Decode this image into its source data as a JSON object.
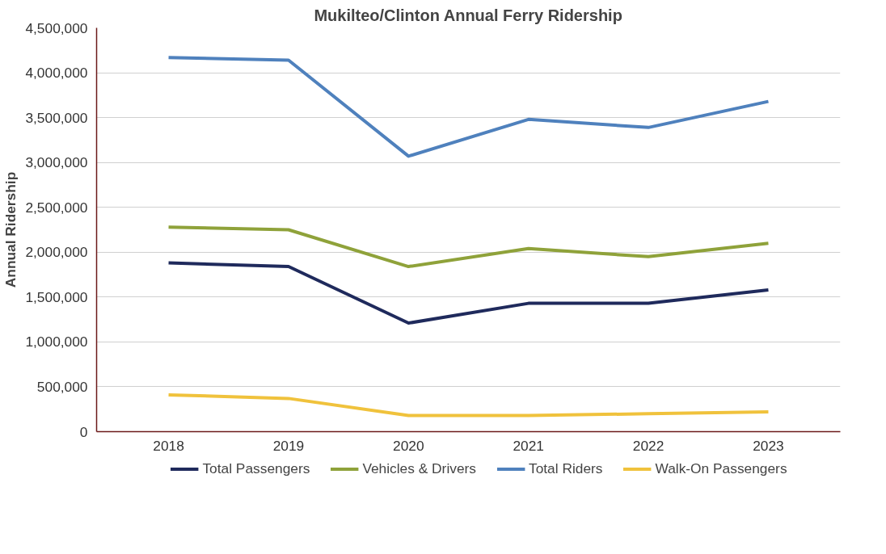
{
  "chart_data": {
    "type": "line",
    "title": "Mukilteo/Clinton Annual Ferry Ridership",
    "ylabel": "Annual Ridership",
    "categories": [
      "2018",
      "2019",
      "2020",
      "2021",
      "2022",
      "2023"
    ],
    "series": [
      {
        "name": "Total Passengers",
        "color": "#1f2a5c",
        "values": [
          1880000,
          1840000,
          1210000,
          1430000,
          1430000,
          1580000
        ]
      },
      {
        "name": "Vehicles & Drivers",
        "color": "#8fa23a",
        "values": [
          2280000,
          2250000,
          1840000,
          2040000,
          1950000,
          2100000
        ]
      },
      {
        "name": "Total Riders",
        "color": "#4f81bd",
        "values": [
          4170000,
          4140000,
          3070000,
          3480000,
          3390000,
          3680000
        ]
      },
      {
        "name": "Walk-On Passengers",
        "color": "#f0c23c",
        "values": [
          410000,
          370000,
          180000,
          180000,
          200000,
          220000
        ]
      }
    ],
    "ylim": [
      0,
      4500000
    ],
    "yticks": [
      {
        "value": 0,
        "label": "0"
      },
      {
        "value": 500000,
        "label": "500,000"
      },
      {
        "value": 1000000,
        "label": "1,000,000"
      },
      {
        "value": 1500000,
        "label": "1,500,000"
      },
      {
        "value": 2000000,
        "label": "2,000,000"
      },
      {
        "value": 2500000,
        "label": "2,500,000"
      },
      {
        "value": 3000000,
        "label": "3,000,000"
      },
      {
        "value": 3500000,
        "label": "3,500,000"
      },
      {
        "value": 4000000,
        "label": "4,000,000"
      },
      {
        "value": 4500000,
        "label": "4,500,000"
      }
    ],
    "grid": "y",
    "legend": "bottom",
    "marker": "none",
    "line_style": "solid"
  }
}
